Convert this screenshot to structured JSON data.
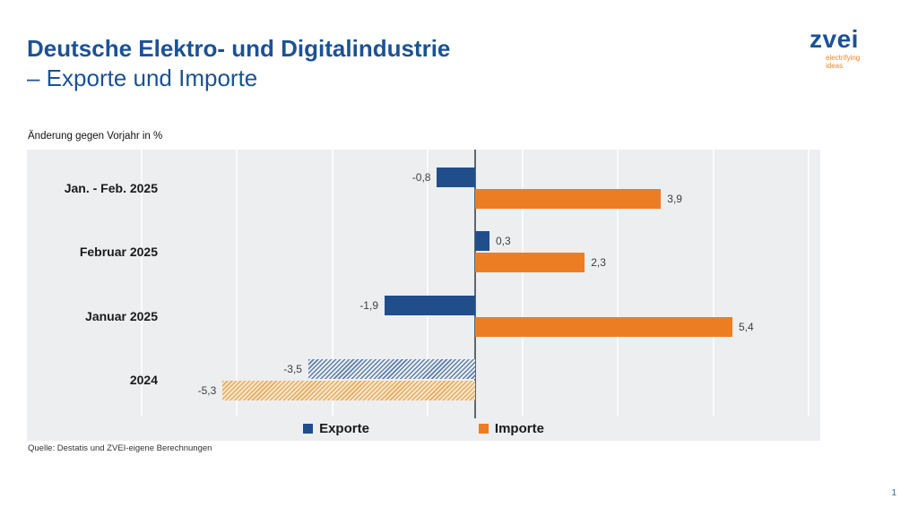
{
  "header": {
    "title_line1": "Deutsche Elektro- und Digitalindustrie",
    "title_line2": "– Exporte und Importe",
    "logo": {
      "name": "zvei",
      "tagline_line1": "electrifying",
      "tagline_line2": "ideas"
    }
  },
  "note": "Änderung gegen Vorjahr in %",
  "chart_data": {
    "type": "bar",
    "orientation": "horizontal",
    "title": "Deutsche Elektro- und Digitalindustrie – Exporte und Importe",
    "unit_note": "Änderung gegen Vorjahr in %",
    "categories": [
      "Jan. - Feb. 2025",
      "Februar 2025",
      "Januar 2025",
      "2024"
    ],
    "series": [
      {
        "name": "Exporte",
        "color": "#1F4E8B",
        "values": [
          -0.8,
          0.3,
          -1.9,
          -3.5
        ],
        "labels": [
          "-0,8",
          "0,3",
          "-1,9",
          "-3,5"
        ]
      },
      {
        "name": "Importe",
        "color": "#ED7D23",
        "values": [
          3.9,
          2.3,
          5.4,
          -5.3
        ],
        "labels": [
          "3,9",
          "2,3",
          "5,4",
          "-5,3"
        ]
      }
    ],
    "hatched_categories": [
      "2024"
    ],
    "xlim": [
      -7.1,
      7.25
    ],
    "gridline_values": [
      -7,
      -5,
      -3,
      -1,
      1,
      3,
      5,
      7
    ],
    "grid": true,
    "legend_position": "bottom",
    "value_labels_shown": true
  },
  "colors": {
    "title_blue": "#1B5296",
    "export_blue": "#1F4E8B",
    "import_orange": "#ED7D23",
    "tagline_orange": "#F0862B",
    "chart_background": "#ECEEEF",
    "axis_line": "#5F666C"
  },
  "footer": {
    "source": "Quelle: Destatis und ZVEI-eigene Berechnungen",
    "page_number": "1"
  }
}
